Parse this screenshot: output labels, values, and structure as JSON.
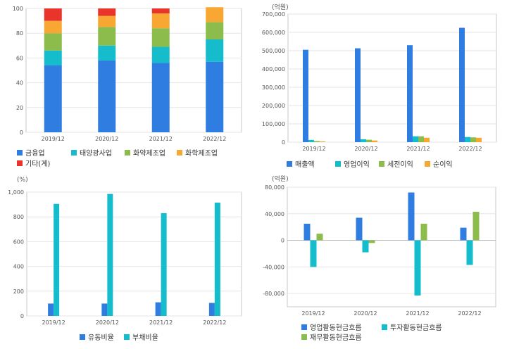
{
  "chart_data": [
    {
      "type": "bar",
      "stacked": true,
      "unit": "",
      "categories": [
        "2019/12",
        "2020/12",
        "2021/12",
        "2022/12"
      ],
      "ylim": [
        0,
        100
      ],
      "yticks": [
        "0",
        "20",
        "40",
        "60",
        "80",
        "100"
      ],
      "series": [
        {
          "name": "금융업",
          "color": "#2f7de1",
          "values": [
            54,
            58,
            56,
            57
          ]
        },
        {
          "name": "태양광사업",
          "color": "#14bccc",
          "values": [
            12,
            12,
            13,
            18
          ]
        },
        {
          "name": "화약제조업",
          "color": "#8cbc4c",
          "values": [
            14,
            15,
            15,
            14
          ]
        },
        {
          "name": "화학제조업",
          "color": "#f8a832",
          "values": [
            10,
            9,
            12,
            12
          ]
        },
        {
          "name": "기타(계)",
          "color": "#e8342a",
          "values": [
            10,
            6,
            4,
            0
          ]
        }
      ],
      "legend": "bottom"
    },
    {
      "type": "bar",
      "unit": "(억원)",
      "categories": [
        "2019/12",
        "2020/12",
        "2021/12",
        "2022/12"
      ],
      "ylim": [
        0,
        700000
      ],
      "yticks": [
        "0",
        "100,000",
        "200,000",
        "300,000",
        "400,000",
        "500,000",
        "600,000",
        "700,000"
      ],
      "series": [
        {
          "name": "매출액",
          "color": "#2f7de1",
          "values": [
            505000,
            513000,
            530000,
            625000
          ]
        },
        {
          "name": "영업이익",
          "color": "#14bccc",
          "values": [
            12000,
            16000,
            32000,
            28000
          ]
        },
        {
          "name": "세전이익",
          "color": "#8cbc4c",
          "values": [
            6000,
            13000,
            32000,
            26000
          ]
        },
        {
          "name": "순이익",
          "color": "#f8a832",
          "values": [
            4000,
            9000,
            24000,
            24000
          ]
        }
      ],
      "legend": "bottom"
    },
    {
      "type": "bar",
      "unit": "(%)",
      "categories": [
        "2019/12",
        "2020/12",
        "2021/12",
        "2022/12"
      ],
      "ylim": [
        0,
        1000
      ],
      "yticks": [
        "0",
        "200",
        "400",
        "600",
        "800",
        "1,000"
      ],
      "series": [
        {
          "name": "유동비율",
          "color": "#2f7de1",
          "values": [
            100,
            100,
            110,
            105
          ]
        },
        {
          "name": "부채비율",
          "color": "#14bccc",
          "values": [
            905,
            985,
            830,
            915
          ]
        }
      ],
      "legend": "bottom"
    },
    {
      "type": "bar",
      "unit": "(억원)",
      "categories": [
        "2019/12",
        "2020/12",
        "2021/12",
        "2022/12"
      ],
      "ylim": [
        -100000,
        80000
      ],
      "yticks": [
        "-80,000",
        "-40,000",
        "0",
        "40,000",
        "80,000"
      ],
      "series": [
        {
          "name": "영업활동현금흐름",
          "color": "#2f7de1",
          "values": [
            25000,
            34000,
            72000,
            19000
          ]
        },
        {
          "name": "투자활동현금흐름",
          "color": "#14bccc",
          "values": [
            -40000,
            -18000,
            -83000,
            -37000
          ]
        },
        {
          "name": "재무활동현금흐름",
          "color": "#8cbc4c",
          "values": [
            10000,
            -4000,
            25000,
            43000
          ]
        }
      ],
      "legend": "bottom"
    }
  ]
}
